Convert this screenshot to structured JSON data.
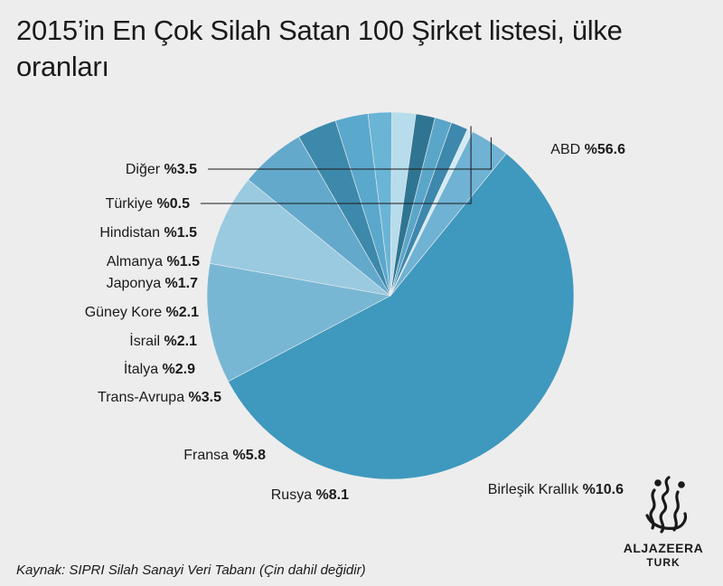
{
  "title": "2015’in En Çok Silah Satan 100 Şirket listesi, ülke oranları",
  "source": "Kaynak: SIPRI Silah Sanayi Veri Tabanı (Çin dahil değidir)",
  "logo": {
    "name": "ALJAZEERA",
    "sub": "TURK"
  },
  "chart_data": {
    "type": "pie",
    "title": "2015’in En Çok Silah Satan 100 Şirket listesi, ülke oranları",
    "slices": [
      {
        "label": "ABD",
        "value": 56.6,
        "display": "%56.6",
        "color": "#3f98bd"
      },
      {
        "label": "Birleşik Krallık",
        "value": 10.6,
        "display": "%10.6",
        "color": "#78b7d4"
      },
      {
        "label": "Rusya",
        "value": 8.1,
        "display": "%8.1",
        "color": "#9acae0"
      },
      {
        "label": "Fransa",
        "value": 5.8,
        "display": "%5.8",
        "color": "#63a9cc"
      },
      {
        "label": "Trans-Avrupa",
        "value": 3.5,
        "display": "%3.5",
        "color": "#3d89ab"
      },
      {
        "label": "İtalya",
        "value": 2.9,
        "display": "%2.9",
        "color": "#5aa8cc"
      },
      {
        "label": "İsrail",
        "value": 2.1,
        "display": "%2.1",
        "color": "#6ab4d6"
      },
      {
        "label": "Güney Kore",
        "value": 2.1,
        "display": "%2.1",
        "color": "#b7dceb"
      },
      {
        "label": "Japonya",
        "value": 1.7,
        "display": "%1.7",
        "color": "#2f7592"
      },
      {
        "label": "Almanya",
        "value": 1.5,
        "display": "%1.5",
        "color": "#5aa6c9"
      },
      {
        "label": "Hindistan",
        "value": 1.5,
        "display": "%1.5",
        "color": "#3d88ac"
      },
      {
        "label": "Türkiye",
        "value": 0.5,
        "display": "%0.5",
        "color": "#d3ebf5"
      },
      {
        "label": "Diğer",
        "value": 3.5,
        "display": "%3.5",
        "color": "#6fb2d3"
      }
    ]
  }
}
